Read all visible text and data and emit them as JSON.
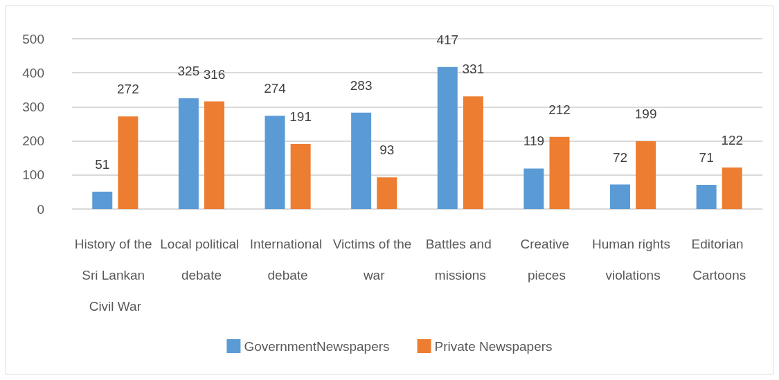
{
  "chart_data": {
    "type": "bar",
    "categories": [
      "History of the Sri Lankan Civil War",
      "Local political debate",
      "International debate",
      "Victims of the war",
      "Battles and missions",
      "Creative pieces",
      "Human rights violations",
      "Editorian Cartoons"
    ],
    "series": [
      {
        "name": "GovernmentNewspapers",
        "color": "#5b9bd5",
        "values": [
          51,
          325,
          274,
          283,
          417,
          119,
          72,
          71
        ]
      },
      {
        "name": "Private Newspapers",
        "color": "#ed7d31",
        "values": [
          272,
          316,
          191,
          93,
          331,
          212,
          199,
          122
        ]
      }
    ],
    "ylim": [
      0,
      500
    ],
    "yticks": [
      0,
      100,
      200,
      300,
      400,
      500
    ],
    "grid": "y",
    "legend": "bottom",
    "data_labels": true
  }
}
